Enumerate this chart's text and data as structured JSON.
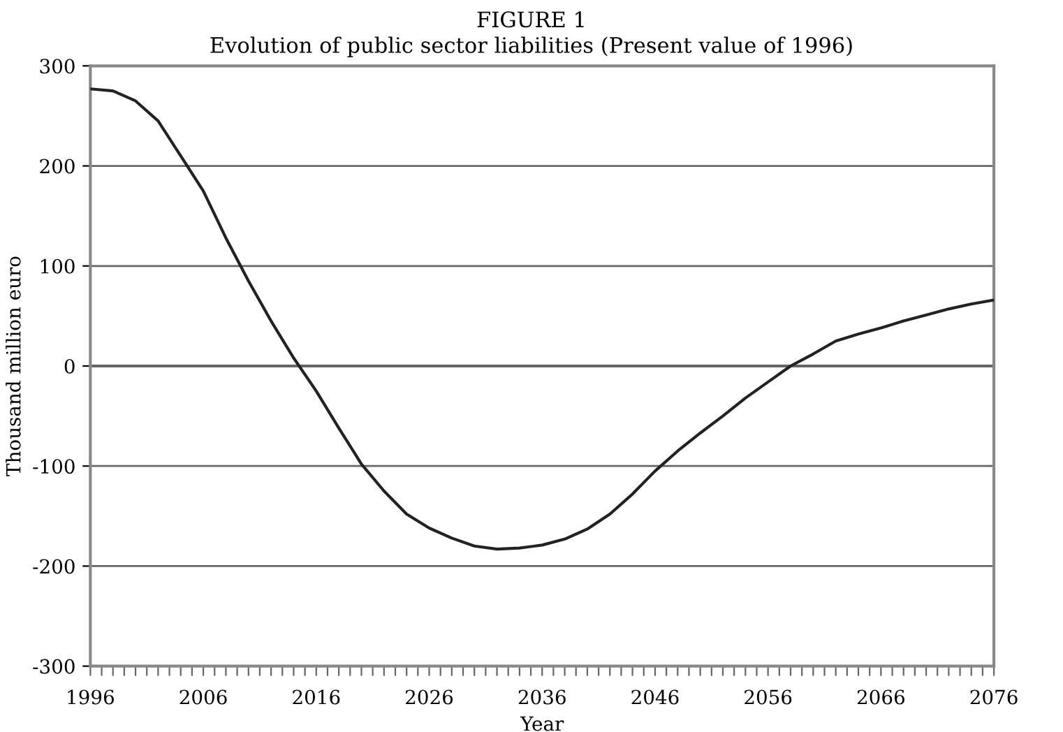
{
  "chart_data": {
    "type": "line",
    "title": "FIGURE 1",
    "subtitle": "Evolution of public sector liabilities (Present value of 1996)",
    "xlabel": "Year",
    "ylabel": "Thousand million euro",
    "x": [
      1996,
      1998,
      2000,
      2002,
      2004,
      2006,
      2008,
      2010,
      2012,
      2014,
      2016,
      2018,
      2020,
      2022,
      2024,
      2026,
      2028,
      2030,
      2032,
      2034,
      2036,
      2038,
      2040,
      2042,
      2044,
      2046,
      2048,
      2050,
      2052,
      2054,
      2056,
      2058,
      2060,
      2062,
      2064,
      2066,
      2068,
      2070,
      2072,
      2074,
      2076
    ],
    "series": [
      {
        "color": "#222222",
        "values": [
          277,
          275,
          265,
          245,
          210,
          175,
          128,
          85,
          45,
          8,
          -25,
          -62,
          -98,
          -125,
          -148,
          -162,
          -172,
          -180,
          -183,
          -182,
          -179,
          -173,
          -163,
          -148,
          -128,
          -105,
          -85,
          -67,
          -50,
          -32,
          -16,
          0,
          12,
          25,
          32,
          38,
          45,
          51,
          57,
          62,
          66
        ]
      }
    ],
    "xlim": [
      1996,
      2076
    ],
    "xticks": [
      1996,
      2006,
      2016,
      2026,
      2036,
      2046,
      2056,
      2066,
      2076
    ],
    "ylim": [
      -300,
      300
    ],
    "yticks": [
      -300,
      -200,
      -100,
      0,
      100,
      200,
      300
    ],
    "ref_lines": [
      {
        "axis": "y",
        "value": 0
      }
    ],
    "grid": "y",
    "line_style": "solid",
    "marker": "none"
  }
}
